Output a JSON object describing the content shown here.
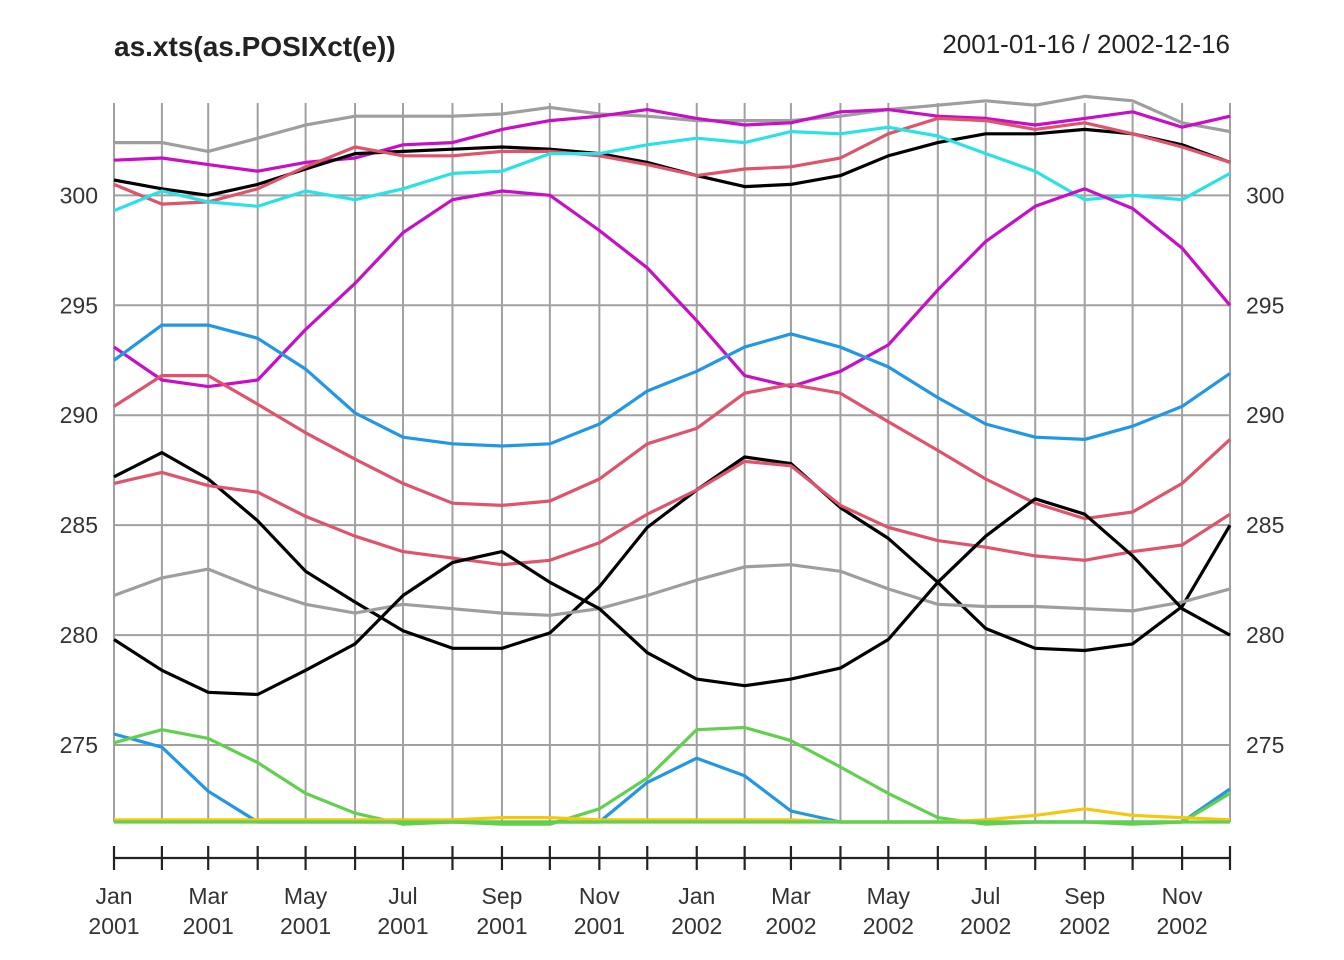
{
  "chart_data": {
    "type": "line",
    "title": "as.xts(as.POSIXct(e))",
    "date_range": "2001-01-16 / 2002-12-16",
    "x": [
      "2001-01-16",
      "2001-02-15",
      "2001-03-16",
      "2001-04-16",
      "2001-05-16",
      "2001-06-16",
      "2001-07-16",
      "2001-08-16",
      "2001-09-16",
      "2001-10-16",
      "2001-11-16",
      "2001-12-16",
      "2002-01-16",
      "2002-02-15",
      "2002-03-16",
      "2002-04-16",
      "2002-05-16",
      "2002-06-16",
      "2002-07-16",
      "2002-08-16",
      "2002-09-16",
      "2002-10-16",
      "2002-11-16",
      "2002-12-16"
    ],
    "xtick_labels": [
      {
        "month": "Jan",
        "year": "2001"
      },
      {
        "month": "Mar",
        "year": "2001"
      },
      {
        "month": "May",
        "year": "2001"
      },
      {
        "month": "Jul",
        "year": "2001"
      },
      {
        "month": "Sep",
        "year": "2001"
      },
      {
        "month": "Nov",
        "year": "2001"
      },
      {
        "month": "Jan",
        "year": "2002"
      },
      {
        "month": "Mar",
        "year": "2002"
      },
      {
        "month": "May",
        "year": "2002"
      },
      {
        "month": "Jul",
        "year": "2002"
      },
      {
        "month": "Sep",
        "year": "2002"
      },
      {
        "month": "Nov",
        "year": "2002"
      }
    ],
    "yticks": [
      275,
      280,
      285,
      290,
      295,
      300
    ],
    "ylim": [
      271.5,
      304.2
    ],
    "grid": true,
    "legend": "none",
    "series": [
      {
        "color": "#9E9E9E",
        "values": [
          302.4,
          302.4,
          302.0,
          302.6,
          303.2,
          303.6,
          303.6,
          303.6,
          303.7,
          304.0,
          303.7,
          303.6,
          303.4,
          303.4,
          303.4,
          303.6,
          303.9,
          304.1,
          304.3,
          304.1,
          304.5,
          304.3,
          303.3,
          302.9
        ]
      },
      {
        "color": "#C70FC7",
        "values": [
          301.6,
          301.7,
          301.4,
          301.1,
          301.5,
          301.7,
          302.3,
          302.4,
          303.0,
          303.4,
          303.6,
          303.9,
          303.5,
          303.2,
          303.3,
          303.8,
          303.9,
          303.6,
          303.5,
          303.2,
          303.5,
          303.8,
          303.1,
          303.6
        ]
      },
      {
        "color": "#000000",
        "values": [
          300.7,
          300.3,
          300.0,
          300.5,
          301.2,
          301.9,
          302.0,
          302.1,
          302.2,
          302.1,
          301.9,
          301.5,
          300.9,
          300.4,
          300.5,
          300.9,
          301.8,
          302.4,
          302.8,
          302.8,
          303.0,
          302.8,
          302.3,
          301.5
        ]
      },
      {
        "color": "#DF536B",
        "values": [
          300.5,
          299.6,
          299.7,
          300.3,
          301.3,
          302.2,
          301.8,
          301.8,
          302.0,
          302.0,
          301.8,
          301.4,
          300.9,
          301.2,
          301.3,
          301.7,
          302.8,
          303.5,
          303.4,
          303.0,
          303.3,
          302.8,
          302.2,
          301.5
        ]
      },
      {
        "color": "#28E2E5",
        "values": [
          299.3,
          300.2,
          299.7,
          299.5,
          300.2,
          299.8,
          300.3,
          301.0,
          301.1,
          301.9,
          301.9,
          302.3,
          302.6,
          302.4,
          302.9,
          302.8,
          303.1,
          302.7,
          301.9,
          301.1,
          299.8,
          300.0,
          299.8,
          301.0
        ]
      },
      {
        "color": "#C70FC7",
        "values": [
          293.1,
          291.6,
          291.3,
          291.6,
          293.9,
          296.0,
          298.3,
          299.8,
          300.2,
          300.0,
          298.4,
          296.7,
          294.3,
          291.8,
          291.3,
          292.0,
          293.2,
          295.7,
          297.9,
          299.5,
          300.3,
          299.4,
          297.6,
          295.0
        ]
      },
      {
        "color": "#2297E6",
        "values": [
          292.5,
          294.1,
          294.1,
          293.5,
          292.1,
          290.1,
          289.0,
          288.7,
          288.6,
          288.7,
          289.6,
          291.1,
          292.0,
          293.1,
          293.7,
          293.1,
          292.2,
          290.8,
          289.6,
          289.0,
          288.9,
          289.5,
          290.4,
          291.9
        ]
      },
      {
        "color": "#DF536B",
        "values": [
          290.4,
          291.8,
          291.8,
          290.5,
          289.2,
          288.0,
          286.9,
          286.0,
          285.9,
          286.1,
          287.1,
          288.7,
          289.4,
          291.0,
          291.4,
          291.0,
          289.7,
          288.4,
          287.1,
          286.0,
          285.3,
          285.6,
          286.9,
          288.9
        ]
      },
      {
        "color": "#000000",
        "values": [
          287.2,
          288.3,
          287.1,
          285.2,
          282.9,
          281.5,
          280.2,
          279.4,
          279.4,
          280.1,
          282.2,
          284.9,
          286.6,
          288.1,
          287.8,
          285.8,
          284.4,
          282.4,
          280.3,
          279.4,
          279.3,
          279.6,
          281.3,
          285.0
        ]
      },
      {
        "color": "#DF536B",
        "values": [
          286.9,
          287.4,
          286.8,
          286.5,
          285.4,
          284.5,
          283.8,
          283.5,
          283.2,
          283.4,
          284.2,
          285.5,
          286.6,
          287.9,
          287.7,
          285.9,
          284.9,
          284.3,
          284.0,
          283.6,
          283.4,
          283.8,
          284.1,
          285.5
        ]
      },
      {
        "color": "#9E9E9E",
        "values": [
          281.8,
          282.6,
          283.0,
          282.1,
          281.4,
          281.0,
          281.4,
          281.2,
          281.0,
          280.9,
          281.2,
          281.8,
          282.5,
          283.1,
          283.2,
          282.9,
          282.1,
          281.4,
          281.3,
          281.3,
          281.2,
          281.1,
          281.5,
          282.1
        ]
      },
      {
        "color": "#000000",
        "values": [
          279.8,
          278.4,
          277.4,
          277.3,
          278.4,
          279.6,
          281.8,
          283.3,
          283.8,
          282.4,
          281.2,
          279.2,
          278.0,
          277.7,
          278.0,
          278.5,
          279.8,
          282.4,
          284.5,
          286.2,
          285.5,
          283.6,
          281.2,
          280.0
        ]
      },
      {
        "color": "#2297E6",
        "values": [
          275.5,
          274.9,
          272.9,
          271.5,
          271.5,
          271.5,
          271.5,
          271.5,
          271.5,
          271.5,
          271.5,
          273.3,
          274.4,
          273.6,
          272.0,
          271.5,
          271.5,
          271.5,
          271.5,
          271.5,
          271.5,
          271.5,
          271.5,
          273.0
        ]
      },
      {
        "color": "#61D04F",
        "values": [
          275.1,
          275.7,
          275.3,
          274.2,
          272.8,
          271.9,
          271.4,
          271.5,
          271.4,
          271.4,
          272.1,
          273.5,
          275.7,
          275.8,
          275.2,
          274.0,
          272.8,
          271.7,
          271.4,
          271.5,
          271.5,
          271.4,
          271.5,
          272.8
        ]
      },
      {
        "color": "#F5C710",
        "values": [
          271.6,
          271.6,
          271.6,
          271.6,
          271.6,
          271.6,
          271.6,
          271.6,
          271.7,
          271.7,
          271.6,
          271.6,
          271.6,
          271.6,
          271.6,
          271.5,
          271.5,
          271.5,
          271.6,
          271.8,
          272.1,
          271.8,
          271.7,
          271.6
        ]
      },
      {
        "color": "#61D04F",
        "values": [
          271.5,
          271.5,
          271.5,
          271.5,
          271.5,
          271.5,
          271.5,
          271.5,
          271.5,
          271.5,
          271.5,
          271.5,
          271.5,
          271.5,
          271.5,
          271.5,
          271.5,
          271.5,
          271.5,
          271.5,
          271.5,
          271.5,
          271.5,
          271.5
        ]
      }
    ]
  }
}
